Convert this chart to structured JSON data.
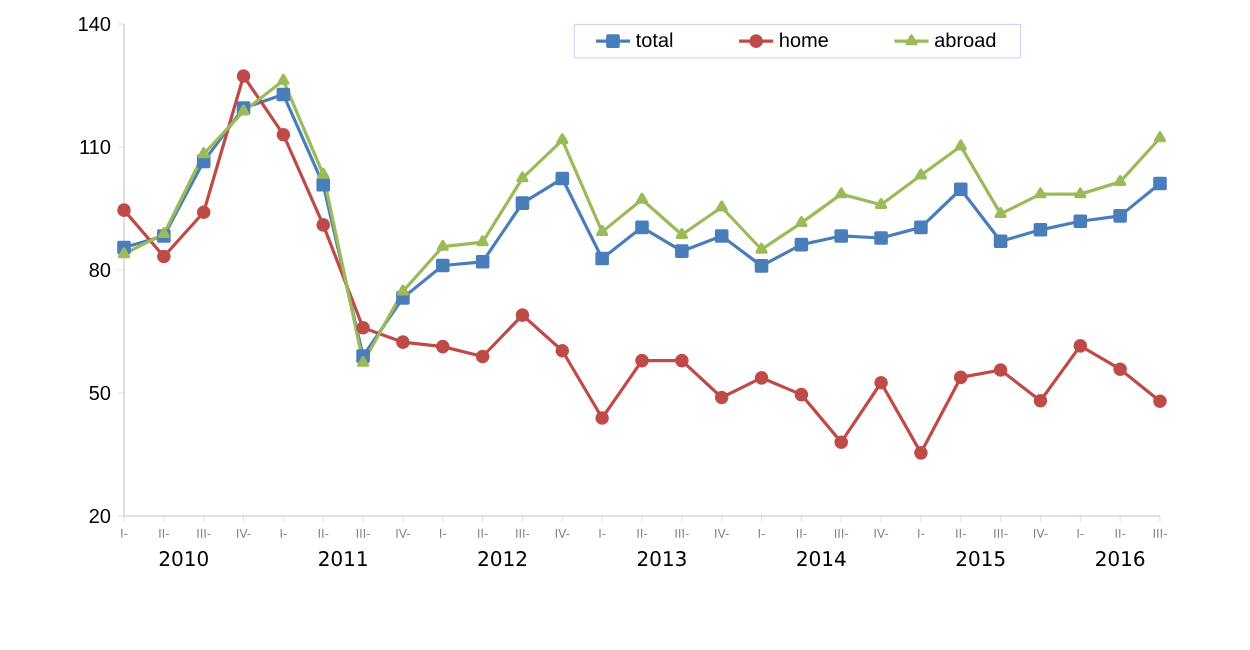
{
  "chart_data": {
    "type": "line",
    "categories": [
      "I-",
      "II-",
      "III-",
      "IV-",
      "I-",
      "II-",
      "III-",
      "IV-",
      "I-",
      "II-",
      "III-",
      "IV-",
      "I-",
      "II-",
      "III-",
      "IV-",
      "I-",
      "II-",
      "III-",
      "IV-",
      "I-",
      "II-",
      "III-",
      "IV-",
      "I-",
      "II-",
      "III-"
    ],
    "series": [
      {
        "name": "total",
        "color": "#4a7ebb",
        "marker": "square",
        "values": [
          85.5,
          88.3,
          106.5,
          119.5,
          122.8,
          100.8,
          59,
          73.2,
          81.1,
          82,
          96.3,
          102.3,
          82.8,
          90.4,
          84.6,
          88.3,
          81,
          86.2,
          88.3,
          87.8,
          90.4,
          99.7,
          87,
          89.8,
          91.9,
          93.2,
          101.1
        ]
      },
      {
        "name": "home",
        "color": "#be4b48",
        "marker": "circle",
        "values": [
          94.6,
          83.3,
          94.1,
          127.3,
          113,
          91,
          65.9,
          62.4,
          61.3,
          58.9,
          69,
          60.3,
          43.9,
          57.9,
          57.9,
          48.9,
          53.7,
          49.6,
          38,
          52.5,
          35.4,
          53.8,
          55.6,
          48.1,
          61.5,
          55.8,
          48
        ]
      },
      {
        "name": "abroad",
        "color": "#9bbb59",
        "marker": "triangle",
        "values": [
          83.9,
          88.8,
          108.3,
          118.7,
          126.2,
          103.3,
          57.4,
          74.8,
          85.7,
          86.8,
          102.4,
          111.7,
          89.3,
          97.2,
          88.6,
          95.3,
          85,
          91.5,
          98.5,
          95.9,
          103.1,
          110.2,
          93.7,
          98.5,
          98.5,
          101.5,
          112.2
        ]
      }
    ],
    "annotations": [
      "2010",
      "2011",
      "2012",
      "2013",
      "2014",
      "2015",
      "2016"
    ],
    "ylim": [
      20,
      140
    ],
    "yticks": [
      20,
      50,
      80,
      110,
      140
    ],
    "legend": "top",
    "line_style": "solid"
  }
}
